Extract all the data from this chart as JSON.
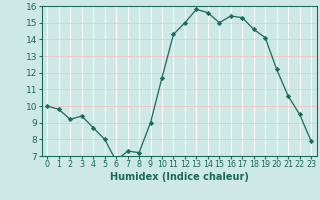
{
  "x": [
    0,
    1,
    2,
    3,
    4,
    5,
    6,
    7,
    8,
    9,
    10,
    11,
    12,
    13,
    14,
    15,
    16,
    17,
    18,
    19,
    20,
    21,
    22,
    23
  ],
  "y": [
    10.0,
    9.8,
    9.2,
    9.4,
    8.7,
    8.0,
    6.7,
    7.3,
    7.2,
    9.0,
    11.7,
    14.3,
    15.0,
    15.8,
    15.6,
    15.0,
    15.4,
    15.3,
    14.6,
    14.1,
    12.2,
    10.6,
    9.5,
    7.9
  ],
  "xlim": [
    -0.5,
    23.5
  ],
  "ylim": [
    7,
    16
  ],
  "yticks": [
    7,
    8,
    9,
    10,
    11,
    12,
    13,
    14,
    15,
    16
  ],
  "xticks": [
    0,
    1,
    2,
    3,
    4,
    5,
    6,
    7,
    8,
    9,
    10,
    11,
    12,
    13,
    14,
    15,
    16,
    17,
    18,
    19,
    20,
    21,
    22,
    23
  ],
  "xlabel": "Humidex (Indice chaleur)",
  "line_color": "#1a6b5a",
  "marker": "D",
  "marker_size": 2.2,
  "bg_color": "#cde8e5",
  "grid_color": "#f0c8c8",
  "tick_color": "#1a6b5a",
  "label_color": "#1a6b5a",
  "xlabel_fontsize": 7,
  "ytick_fontsize": 6.5,
  "xtick_fontsize": 5.8
}
